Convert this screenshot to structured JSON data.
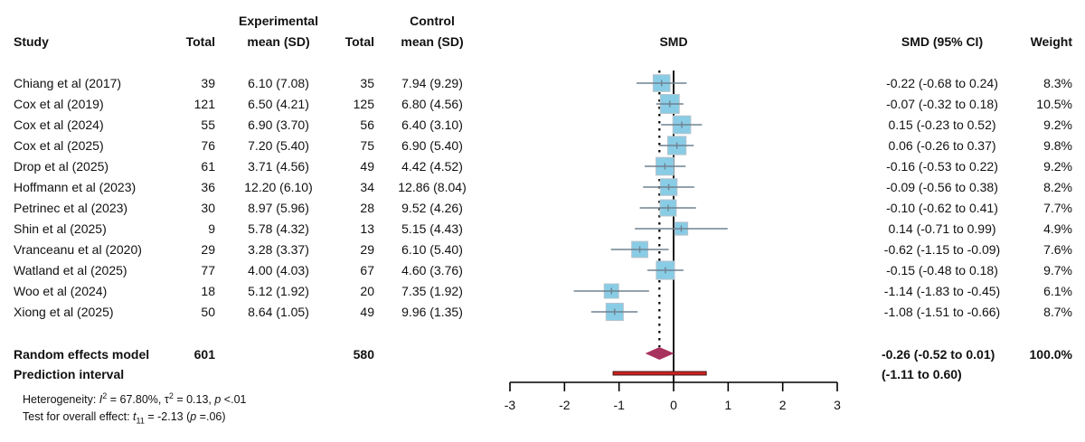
{
  "headers": {
    "study": "Study",
    "exp_group": "Experimental",
    "exp_total": "Total",
    "exp_mean": "mean (SD)",
    "ctl_group": "Control",
    "ctl_total": "Total",
    "ctl_mean": "mean (SD)",
    "plot": "SMD",
    "ci": "SMD (95% CI)",
    "weight": "Weight"
  },
  "summary": {
    "label": "Random effects model",
    "exp_total": "601",
    "ctl_total": "580",
    "ci_text": "-0.26 (-0.52 to 0.01)",
    "weight": "100.0%",
    "prediction_label": "Prediction interval",
    "prediction_text": "(-1.11 to 0.60)",
    "heterogeneity_prefix": "Heterogeneity: ",
    "heterogeneity_i2_sym": "I",
    "heterogeneity_i2": " = 67.80%, ",
    "heterogeneity_tau_sym": "τ",
    "heterogeneity_tau": " = 0.13, ",
    "heterogeneity_p_sym": "p",
    "heterogeneity_p": " <.01",
    "overall_prefix": "Test for overall effect: ",
    "overall_t_sym": "t",
    "overall_df": "11",
    "overall_t": " = -2.13 (",
    "overall_p_sym": "p",
    "overall_p": " =.06)"
  },
  "colors": {
    "box_fill": "#89CCE6",
    "box_border": "#B8C4CC",
    "ci_line": "#6E8290",
    "diamond": "#A8325E",
    "prediction_fill": "#CC2222",
    "prediction_border": "#3A1010",
    "axis": "#000000"
  },
  "chart_data": {
    "type": "forest",
    "title": "",
    "xlabel": "SMD",
    "xlim": [
      -3,
      3
    ],
    "xticks": [
      "-3",
      "-2",
      "-1",
      "0",
      "1",
      "2",
      "3"
    ],
    "null_line": 0,
    "pooled_line": -0.26,
    "studies": [
      {
        "name": "Chiang et al (2017)",
        "exp_n": "39",
        "exp_mean_sd": "6.10 (7.08)",
        "ctl_n": "35",
        "ctl_mean_sd": "7.94 (9.29)",
        "smd": -0.22,
        "lo": -0.68,
        "hi": 0.24,
        "ci_text": "-0.22 (-0.68 to 0.24)",
        "weight": 8.3,
        "weight_text": "8.3%"
      },
      {
        "name": "Cox et al (2019)",
        "exp_n": "121",
        "exp_mean_sd": "6.50 (4.21)",
        "ctl_n": "125",
        "ctl_mean_sd": "6.80 (4.56)",
        "smd": -0.07,
        "lo": -0.32,
        "hi": 0.18,
        "ci_text": "-0.07 (-0.32 to 0.18)",
        "weight": 10.5,
        "weight_text": "10.5%"
      },
      {
        "name": "Cox et al (2024)",
        "exp_n": "55",
        "exp_mean_sd": "6.90 (3.70)",
        "ctl_n": "56",
        "ctl_mean_sd": "6.40 (3.10)",
        "smd": 0.15,
        "lo": -0.23,
        "hi": 0.52,
        "ci_text": "0.15 (-0.23 to 0.52)",
        "weight": 9.2,
        "weight_text": "9.2%"
      },
      {
        "name": "Cox et al (2025)",
        "exp_n": "76",
        "exp_mean_sd": "7.20 (5.40)",
        "ctl_n": "75",
        "ctl_mean_sd": "6.90 (5.40)",
        "smd": 0.06,
        "lo": -0.26,
        "hi": 0.37,
        "ci_text": "0.06 (-0.26 to 0.37)",
        "weight": 9.8,
        "weight_text": "9.8%"
      },
      {
        "name": "Drop et al (2025)",
        "exp_n": "61",
        "exp_mean_sd": "3.71 (4.56)",
        "ctl_n": "49",
        "ctl_mean_sd": "4.42 (4.52)",
        "smd": -0.16,
        "lo": -0.53,
        "hi": 0.22,
        "ci_text": "-0.16 (-0.53 to 0.22)",
        "weight": 9.2,
        "weight_text": "9.2%"
      },
      {
        "name": "Hoffmann et al (2023)",
        "exp_n": "36",
        "exp_mean_sd": "12.20 (6.10)",
        "ctl_n": "34",
        "ctl_mean_sd": "12.86 (8.04)",
        "smd": -0.09,
        "lo": -0.56,
        "hi": 0.38,
        "ci_text": "-0.09 (-0.56 to 0.38)",
        "weight": 8.2,
        "weight_text": "8.2%"
      },
      {
        "name": "Petrinec et al (2023)",
        "exp_n": "30",
        "exp_mean_sd": "8.97 (5.96)",
        "ctl_n": "28",
        "ctl_mean_sd": "9.52 (4.26)",
        "smd": -0.1,
        "lo": -0.62,
        "hi": 0.41,
        "ci_text": "-0.10 (-0.62 to 0.41)",
        "weight": 7.7,
        "weight_text": "7.7%"
      },
      {
        "name": "Shin et al (2025)",
        "exp_n": "9",
        "exp_mean_sd": "5.78 (4.32)",
        "ctl_n": "13",
        "ctl_mean_sd": "5.15 (4.43)",
        "smd": 0.14,
        "lo": -0.71,
        "hi": 0.99,
        "ci_text": "0.14 (-0.71 to 0.99)",
        "weight": 4.9,
        "weight_text": "4.9%"
      },
      {
        "name": "Vranceanu et al (2020)",
        "exp_n": "29",
        "exp_mean_sd": "3.28 (3.37)",
        "ctl_n": "29",
        "ctl_mean_sd": "6.10 (5.40)",
        "smd": -0.62,
        "lo": -1.15,
        "hi": -0.09,
        "ci_text": "-0.62 (-1.15 to -0.09)",
        "weight": 7.6,
        "weight_text": "7.6%"
      },
      {
        "name": "Watland et al (2025)",
        "exp_n": "77",
        "exp_mean_sd": "4.00 (4.03)",
        "ctl_n": "67",
        "ctl_mean_sd": "4.60 (3.76)",
        "smd": -0.15,
        "lo": -0.48,
        "hi": 0.18,
        "ci_text": "-0.15 (-0.48 to 0.18)",
        "weight": 9.7,
        "weight_text": "9.7%"
      },
      {
        "name": "Woo et al (2024)",
        "exp_n": "18",
        "exp_mean_sd": "5.12 (1.92)",
        "ctl_n": "20",
        "ctl_mean_sd": "7.35 (1.92)",
        "smd": -1.14,
        "lo": -1.83,
        "hi": -0.45,
        "ci_text": "-1.14 (-1.83 to -0.45)",
        "weight": 6.1,
        "weight_text": "6.1%"
      },
      {
        "name": "Xiong et al (2025)",
        "exp_n": "50",
        "exp_mean_sd": "8.64 (1.05)",
        "ctl_n": "49",
        "ctl_mean_sd": "9.96 (1.35)",
        "smd": -1.08,
        "lo": -1.51,
        "hi": -0.66,
        "ci_text": "-1.08 (-1.51 to -0.66)",
        "weight": 8.7,
        "weight_text": "8.7%"
      }
    ],
    "pooled": {
      "smd": -0.26,
      "lo": -0.52,
      "hi": 0.01
    },
    "prediction_interval": {
      "lo": -1.11,
      "hi": 0.6
    }
  }
}
